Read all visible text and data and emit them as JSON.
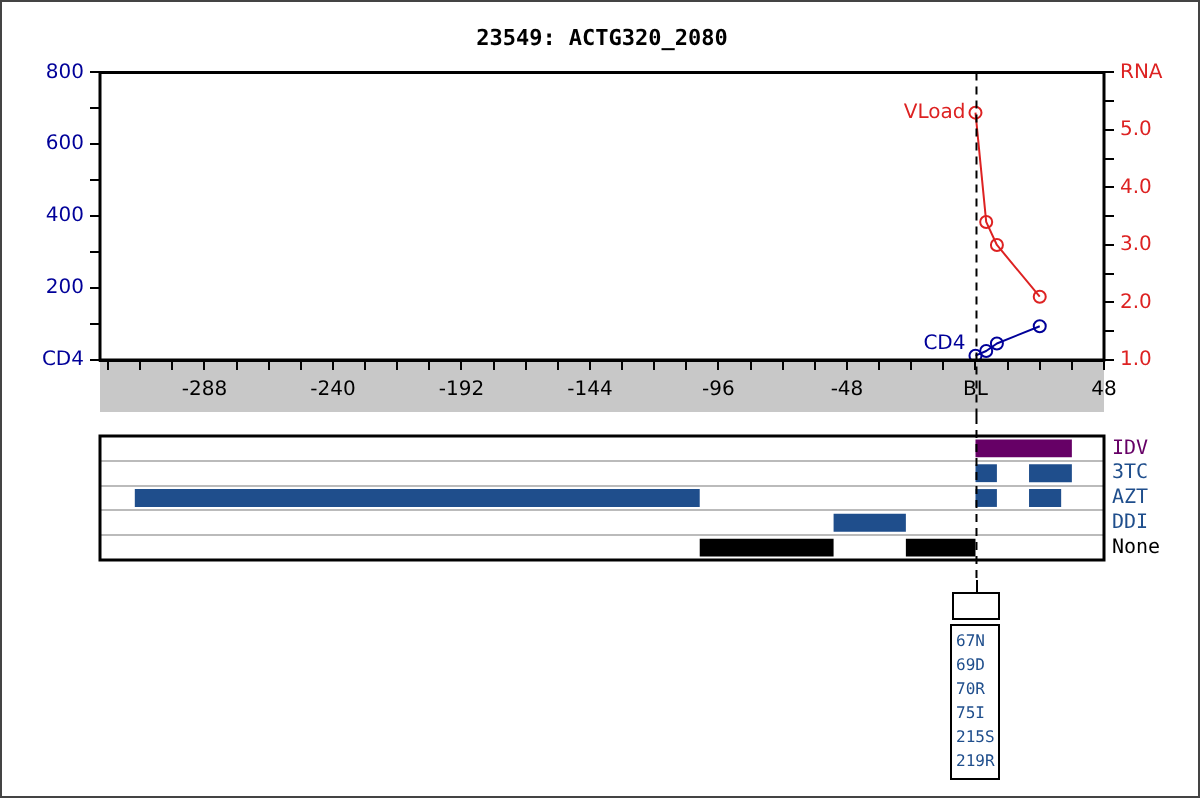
{
  "chart_data": [
    {
      "type": "line",
      "title": "23549: ACTG320_2080",
      "marker": "circle",
      "xlim": [
        -327,
        48
      ],
      "xticks": [
        {
          "value": -324,
          "label": null
        },
        {
          "value": -312,
          "label": null
        },
        {
          "value": -300,
          "label": null
        },
        -288,
        {
          "value": -276,
          "label": null
        },
        {
          "value": -264,
          "label": null
        },
        {
          "value": -252,
          "label": null
        },
        -240,
        {
          "value": -228,
          "label": null
        },
        {
          "value": -216,
          "label": null
        },
        {
          "value": -204,
          "label": null
        },
        -192,
        {
          "value": -180,
          "label": null
        },
        {
          "value": -168,
          "label": null
        },
        {
          "value": -156,
          "label": null
        },
        -144,
        {
          "value": -132,
          "label": null
        },
        {
          "value": -120,
          "label": null
        },
        {
          "value": -108,
          "label": null
        },
        -96,
        {
          "value": -84,
          "label": null
        },
        {
          "value": -72,
          "label": null
        },
        {
          "value": -60,
          "label": null
        },
        -48,
        {
          "value": -36,
          "label": null
        },
        {
          "value": -24,
          "label": null
        },
        {
          "value": -12,
          "label": null
        },
        {
          "value": 0,
          "label": "BL"
        },
        {
          "value": 12,
          "label": null
        },
        {
          "value": 24,
          "label": null
        },
        {
          "value": 36,
          "label": null
        },
        48
      ],
      "ylim": [
        0,
        800
      ],
      "yticks": [
        {
          "value": 0,
          "label": "CD4"
        },
        {
          "value": 100,
          "label": null
        },
        200,
        {
          "value": 300,
          "label": null
        },
        400,
        {
          "value": 500,
          "label": null
        },
        600,
        {
          "value": 700,
          "label": null
        },
        800
      ],
      "y2lim": [
        1,
        6
      ],
      "y2ticks": [
        {
          "value": 1,
          "label": "1.0"
        },
        {
          "value": 1.5,
          "label": null
        },
        {
          "value": 2,
          "label": "2.0"
        },
        {
          "value": 2.5,
          "label": null
        },
        {
          "value": 3,
          "label": "3.0"
        },
        {
          "value": 3.5,
          "label": null
        },
        {
          "value": 4,
          "label": "4.0"
        },
        {
          "value": 4.5,
          "label": null
        },
        {
          "value": 5,
          "label": "5.0"
        },
        {
          "value": 5.5,
          "label": null
        },
        {
          "value": 6,
          "label": "RNA"
        }
      ],
      "ref_lines": [
        {
          "axis": "x",
          "value": 0,
          "color": "#000000",
          "line_style": "dashed"
        }
      ],
      "series": [
        {
          "name": "VLoad",
          "color": "#dd2222",
          "axis": "y2",
          "x": [
            0,
            4,
            8,
            24
          ],
          "values": [
            5.3,
            3.4,
            3.0,
            2.1
          ]
        },
        {
          "name": "CD4",
          "color": "#000099",
          "axis": "y",
          "x": [
            0,
            4,
            8,
            24
          ],
          "values": [
            12,
            25,
            46,
            94
          ]
        }
      ]
    },
    {
      "type": "bar",
      "orientation": "horizontal",
      "grid": "y",
      "tick_labels": "y",
      "xlim": [
        -327,
        48
      ],
      "categories": [
        "IDV",
        "3TC",
        "AZT",
        "DDI",
        "None"
      ],
      "ref_lines": [
        {
          "axis": "x",
          "value": 0,
          "color": "#000000",
          "line_style": "dashed"
        }
      ],
      "annotations": [
        "67N",
        "69D",
        "70R",
        "75I",
        "215S",
        "219R"
      ],
      "series": [
        {
          "colors": [
            "#660066",
            "#1f4e8c",
            "#1f4e8c",
            "#1f4e8c",
            "#000000"
          ],
          "base": [
            0,
            0,
            -314,
            -53,
            -103
          ],
          "values": [
            36,
            8,
            211,
            27,
            50
          ]
        },
        {
          "colors": [
            "#660066",
            "#1f4e8c",
            "#1f4e8c",
            "#1f4e8c",
            "#000000"
          ],
          "base": [
            null,
            20,
            0,
            null,
            -26
          ],
          "values": [
            null,
            16,
            8,
            null,
            26
          ]
        },
        {
          "colors": [
            "#660066",
            "#1f4e8c",
            "#1f4e8c",
            "#1f4e8c",
            "#000000"
          ],
          "base": [
            null,
            null,
            20,
            null,
            null
          ],
          "values": [
            null,
            null,
            12,
            null,
            null
          ]
        }
      ]
    }
  ]
}
